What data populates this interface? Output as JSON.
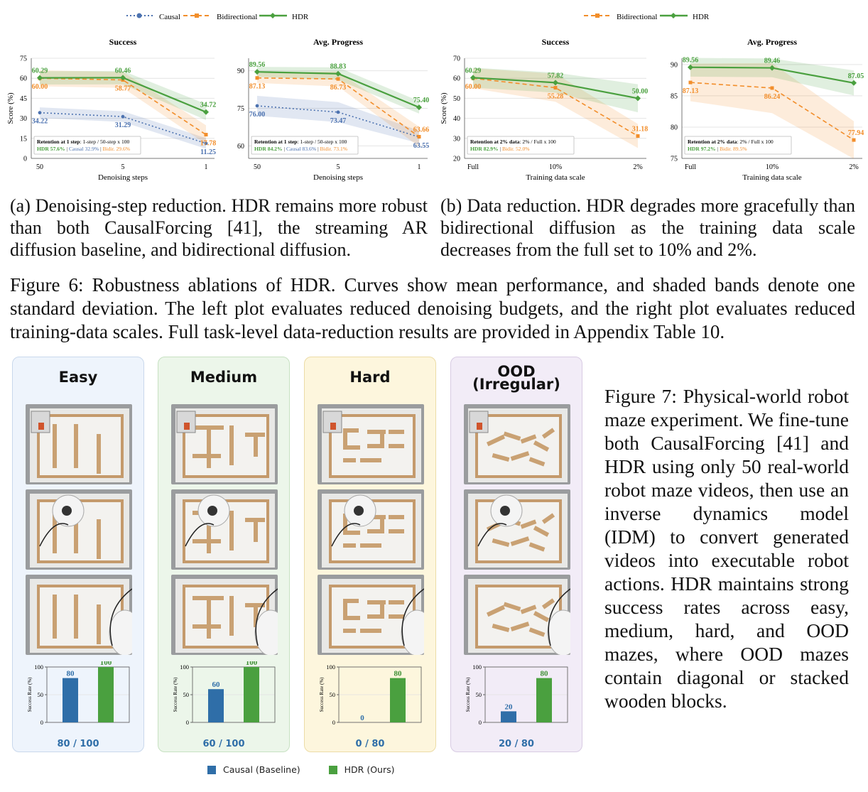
{
  "legend_left": {
    "causal": "Causal",
    "bidirectional": "Bidirectional",
    "hdr": "HDR"
  },
  "legend_right": {
    "bidirectional": "Bidirectional",
    "hdr": "HDR"
  },
  "colors": {
    "causal": "#4c72b0",
    "bidirectional": "#f28e2b",
    "hdr": "#4aa03f",
    "easy": "#eef4fc",
    "medium": "#ecf6ea",
    "hard": "#fdf6dd",
    "ood": "#f2ecf7"
  },
  "chart_data": [
    {
      "type": "line",
      "title": "Success",
      "xlabel": "Denoising steps",
      "ylabel": "Score (%)",
      "categories": [
        "50",
        "5",
        "1"
      ],
      "yticks": [
        "0",
        "15",
        "30",
        "45",
        "60",
        "75"
      ],
      "ylim": [
        0,
        75
      ],
      "series": [
        {
          "name": "Causal",
          "values": [
            34.22,
            31.29,
            11.25
          ],
          "labels": [
            "34.22",
            "31.29",
            "11.25"
          ]
        },
        {
          "name": "Bidirectional",
          "values": [
            60.0,
            58.77,
            17.78
          ],
          "labels": [
            "60.00",
            "58.77",
            "17.78"
          ]
        },
        {
          "name": "HDR",
          "values": [
            60.29,
            60.46,
            34.72
          ],
          "labels": [
            "60.29",
            "60.46",
            "34.72"
          ]
        }
      ],
      "annotation": {
        "title": "Retention at 1 step",
        "detail": ": 1-step / 50-step x 100",
        "hdr": "HDR 57.6%",
        "causal": "Causal 32.9%",
        "bidir": "Bidir. 29.6%"
      }
    },
    {
      "type": "line",
      "title": "Avg. Progress",
      "xlabel": "Denoising steps",
      "ylabel": "",
      "categories": [
        "50",
        "5",
        "1"
      ],
      "yticks": [
        "60",
        "75",
        "90"
      ],
      "ylim": [
        55,
        95
      ],
      "series": [
        {
          "name": "Causal",
          "values": [
            76.0,
            73.47,
            63.55
          ],
          "labels": [
            "76.00",
            "73.47",
            "63.55"
          ]
        },
        {
          "name": "Bidirectional",
          "values": [
            87.13,
            86.73,
            63.66
          ],
          "labels": [
            "87.13",
            "86.73",
            "63.66"
          ]
        },
        {
          "name": "HDR",
          "values": [
            89.56,
            88.83,
            75.4
          ],
          "labels": [
            "89.56",
            "88.83",
            "75.40"
          ]
        }
      ],
      "annotation": {
        "title": "Retention at 1 step",
        "detail": ": 1-step / 50-step x 100",
        "hdr": "HDR 84.2%",
        "causal": "Causal 83.6%",
        "bidir": "Bidir. 73.1%"
      }
    },
    {
      "type": "line",
      "title": "Success",
      "xlabel": "Training data scale",
      "ylabel": "Score (%)",
      "categories": [
        "Full",
        "10%",
        "2%"
      ],
      "yticks": [
        "20",
        "30",
        "40",
        "50",
        "60",
        "70"
      ],
      "ylim": [
        20,
        70
      ],
      "series": [
        {
          "name": "Bidirectional",
          "values": [
            60.0,
            55.28,
            31.18
          ],
          "labels": [
            "60.00",
            "55.28",
            "31.18"
          ]
        },
        {
          "name": "HDR",
          "values": [
            60.29,
            57.82,
            50.0
          ],
          "labels": [
            "60.29",
            "57.82",
            "50.00"
          ]
        }
      ],
      "annotation": {
        "title": "Retention at 2% data",
        "detail": ": 2% / Full x 100",
        "hdr": "HDR 82.9%",
        "bidir": "Bidir. 52.0%"
      }
    },
    {
      "type": "line",
      "title": "Avg. Progress",
      "xlabel": "Training data scale",
      "ylabel": "",
      "categories": [
        "Full",
        "10%",
        "2%"
      ],
      "yticks": [
        "75",
        "80",
        "85",
        "90"
      ],
      "ylim": [
        75,
        91
      ],
      "series": [
        {
          "name": "Bidirectional",
          "values": [
            87.13,
            86.24,
            77.94
          ],
          "labels": [
            "87.13",
            "86.24",
            "77.94"
          ]
        },
        {
          "name": "HDR",
          "values": [
            89.56,
            89.46,
            87.05
          ],
          "labels": [
            "89.56",
            "89.46",
            "87.05"
          ]
        }
      ],
      "annotation": {
        "title": "Retention at 2% data",
        "detail": ": 2% / Full x 100",
        "hdr": "HDR 97.2%",
        "bidir": "Bidir. 89.5%"
      }
    }
  ],
  "captions": {
    "a": "(a) Denoising-step reduction. HDR remains more robust than both CausalForcing [41], the streaming AR diffusion baseline, and bidirectional diffusion.",
    "b": "(b) Data reduction. HDR degrades more gracefully than bidirectional diffusion as the training data scale decreases from the full set to 10% and 2%.",
    "fig6": "Figure 6: Robustness ablations of HDR. Curves show mean performance, and shaded bands denote one standard deviation. The left plot evaluates reduced denoising budgets, and the right plot evaluates reduced training-data scales. Full task-level data-reduction results are provided in Appendix Table 10.",
    "fig7": "Figure 7: Physical-world robot maze experiment. We fine-tune both CausalForcing [41] and HDR using only 50 real-world robot maze videos, then use an inverse dynamics model (IDM) to convert generated videos into executable robot actions. HDR maintains strong success rates across easy, medium, hard, and OOD mazes, where OOD mazes contain diagonal or stacked wooden blocks."
  },
  "maze": {
    "ylabel": "Success Rate (%)",
    "yticks": [
      "0",
      "50",
      "100"
    ],
    "panels": [
      {
        "title": "Easy",
        "causal": 80,
        "hdr": 100,
        "causal_label": "80",
        "hdr_label": "100",
        "score": "80 / 100"
      },
      {
        "title": "Medium",
        "causal": 60,
        "hdr": 100,
        "causal_label": "60",
        "hdr_label": "100",
        "score": "60 / 100"
      },
      {
        "title": "Hard",
        "causal": 0,
        "hdr": 80,
        "causal_label": "0",
        "hdr_label": "80",
        "score": "0 / 80"
      },
      {
        "title": "OOD\n(Irregular)",
        "title_line1": "OOD",
        "title_line2": "(Irregular)",
        "causal": 20,
        "hdr": 80,
        "causal_label": "20",
        "hdr_label": "80",
        "score": "20 / 80"
      }
    ],
    "legend": {
      "causal": "Causal (Baseline)",
      "hdr": "HDR (Ours)"
    }
  }
}
